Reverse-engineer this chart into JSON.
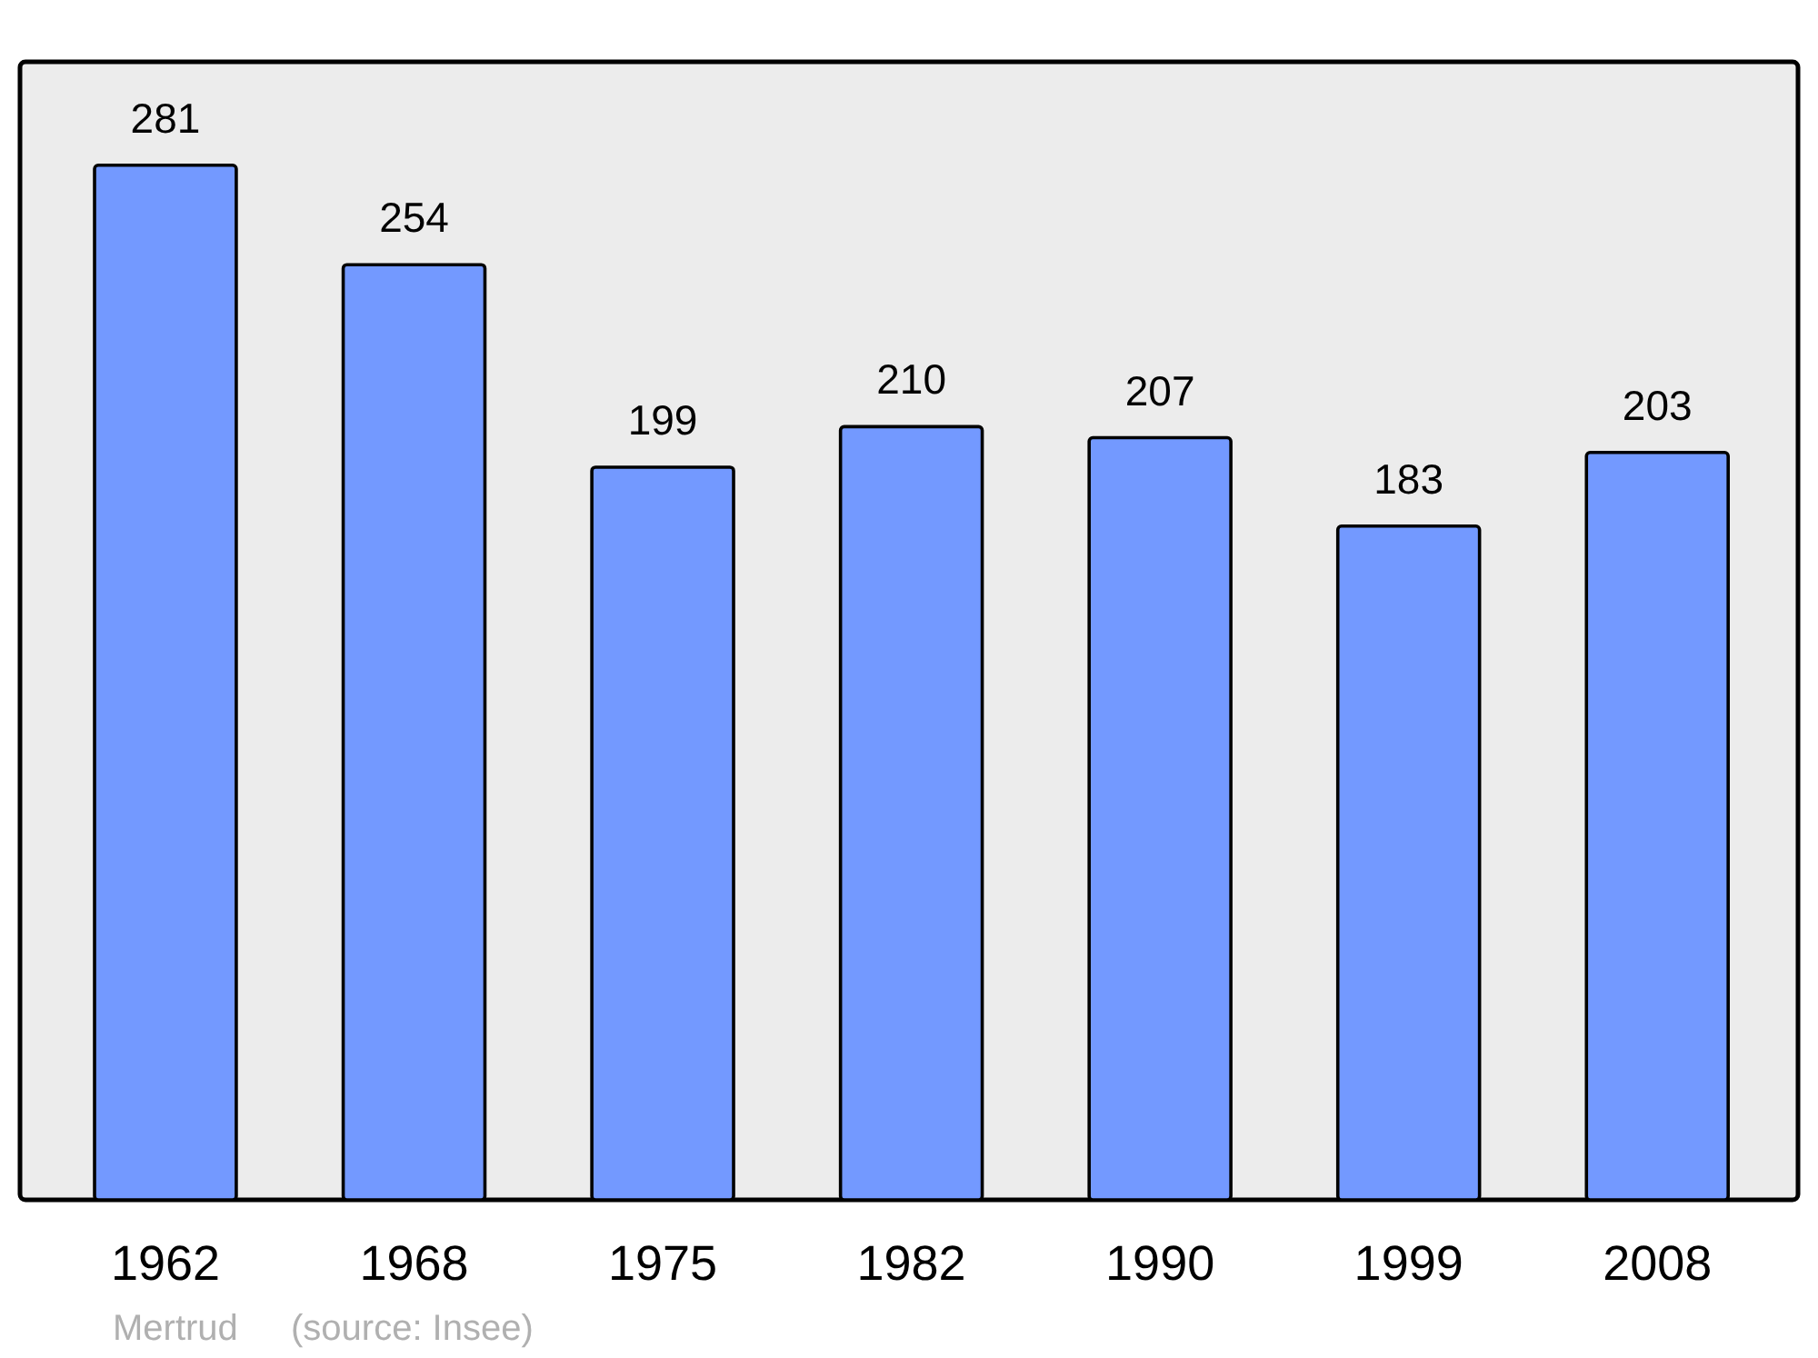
{
  "chart_data": {
    "type": "bar",
    "categories": [
      "1962",
      "1968",
      "1975",
      "1982",
      "1990",
      "1999",
      "2008"
    ],
    "values": [
      281,
      254,
      199,
      210,
      207,
      183,
      203
    ],
    "color": "#7399ff",
    "data_labels": true,
    "annotations": [
      "Mertrud",
      "(source: Insee)"
    ]
  }
}
